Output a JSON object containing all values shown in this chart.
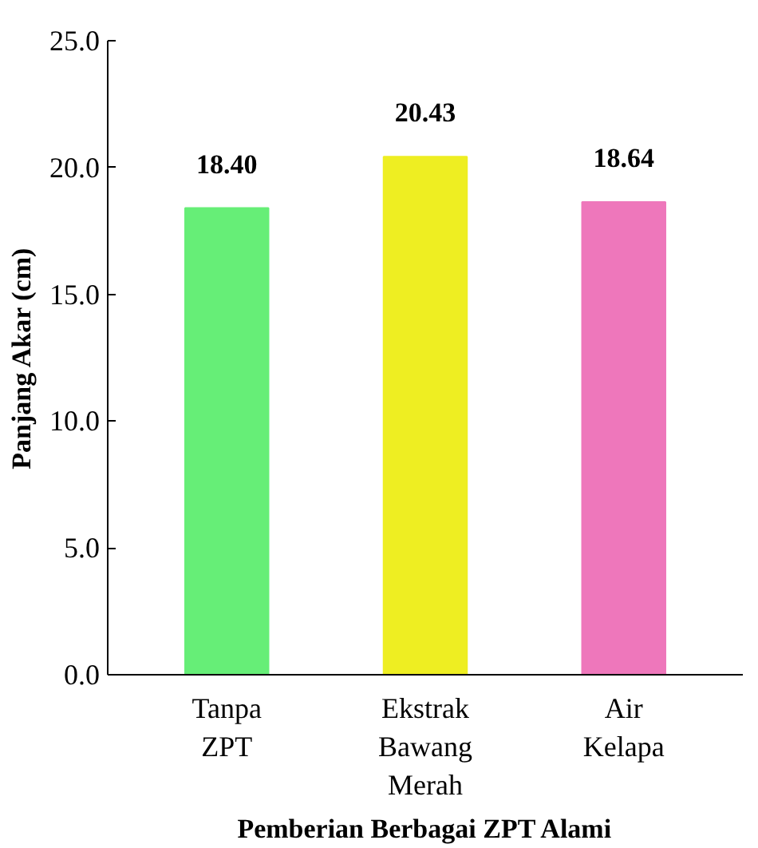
{
  "chart_data": {
    "type": "bar",
    "xlabel": "Pemberian Berbagai ZPT Alami",
    "ylabel": "Panjang Akar (cm)",
    "categories": [
      "Tanpa\nZPT",
      "Ekstrak\nBawang\nMerah",
      "Air\nKelapa"
    ],
    "values": [
      18.4,
      20.43,
      18.64
    ],
    "colors": [
      "#66ee77",
      "#eeee22",
      "#ee77bb"
    ],
    "ylim": [
      0,
      25
    ],
    "yticks": [
      {
        "value": 0,
        "label": "0.0"
      },
      {
        "value": 5,
        "label": "5.0"
      },
      {
        "value": 10,
        "label": "10.0"
      },
      {
        "value": 15,
        "label": "15.0"
      },
      {
        "value": 20,
        "label": "20.0"
      },
      {
        "value": 25,
        "label": "25.0"
      }
    ],
    "value_labels": [
      "18.40",
      "20.43",
      "18.64"
    ],
    "grid": false
  }
}
